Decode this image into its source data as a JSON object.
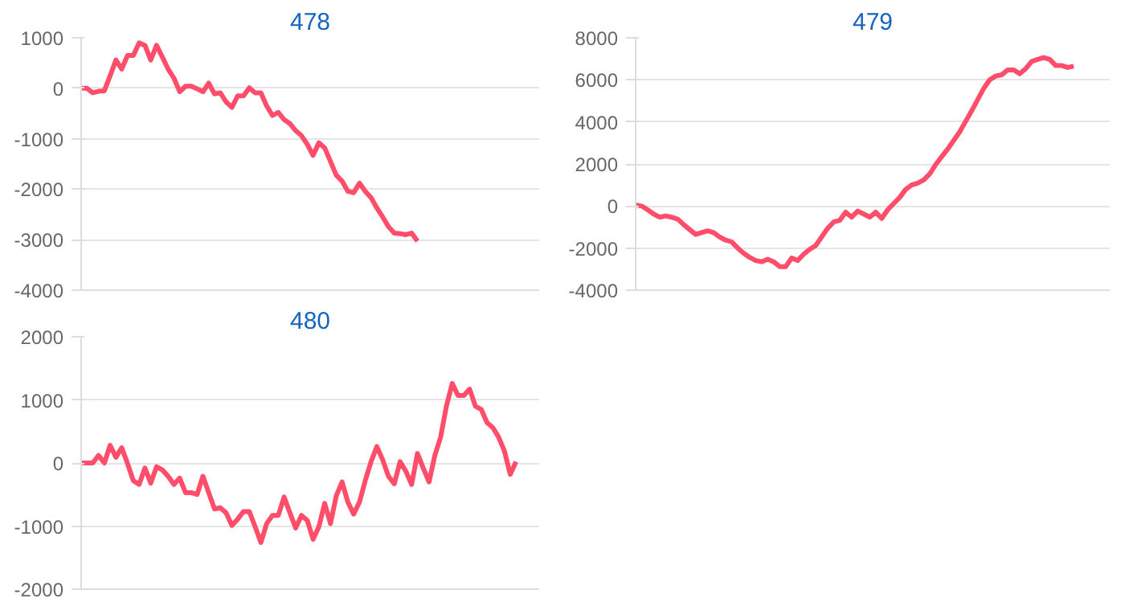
{
  "chart_data": [
    {
      "type": "line",
      "title": "478",
      "categories": [
        null,
        null,
        null,
        null,
        null,
        null,
        null,
        null,
        null,
        null,
        null,
        null,
        null,
        null,
        null,
        null,
        null,
        null,
        null,
        null,
        null,
        null,
        null,
        null,
        null,
        null,
        null,
        null,
        null,
        null,
        null,
        null,
        null,
        null,
        null,
        null,
        null,
        null,
        null,
        null,
        null,
        null,
        null,
        null,
        null,
        null,
        null,
        null,
        null,
        null,
        null,
        null,
        null,
        null,
        null,
        null,
        null,
        null,
        null,
        null,
        null,
        null,
        null,
        null,
        null,
        null,
        null,
        null,
        null,
        null,
        null,
        null,
        null,
        null,
        null,
        null,
        null,
        null,
        null,
        null
      ],
      "series": [
        {
          "color": "#ff4d6a",
          "values": [
            0,
            0,
            -90,
            -60,
            -50,
            250,
            560,
            380,
            650,
            650,
            900,
            850,
            560,
            850,
            620,
            380,
            200,
            -70,
            40,
            40,
            -10,
            -70,
            100,
            -110,
            -90,
            -270,
            -380,
            -150,
            -150,
            10,
            -90,
            -90,
            -350,
            -540,
            -480,
            -620,
            -700,
            -840,
            -940,
            -1110,
            -1330,
            -1080,
            -1180,
            -1450,
            -1720,
            -1840,
            -2040,
            -2070,
            -1880,
            -2040,
            -2170,
            -2370,
            -2550,
            -2740,
            -2870,
            -2880,
            -2900,
            -2870,
            -3030,
            null,
            null,
            null,
            null,
            null,
            null,
            null,
            null,
            null,
            null,
            null,
            null,
            null,
            null,
            null,
            null,
            null,
            null,
            null,
            null,
            null
          ]
        }
      ],
      "ylim": [
        -4000,
        1000
      ],
      "yticks": [
        -4000,
        -3000,
        -2000,
        -1000,
        0,
        1000
      ],
      "grid": "y",
      "tick_labels": "y",
      "marker": "none",
      "line_style": "solid"
    },
    {
      "type": "line",
      "title": "479",
      "categories": [
        null,
        null,
        null,
        null,
        null,
        null,
        null,
        null,
        null,
        null,
        null,
        null,
        null,
        null,
        null,
        null,
        null,
        null,
        null,
        null,
        null,
        null,
        null,
        null,
        null,
        null,
        null,
        null,
        null,
        null,
        null,
        null,
        null,
        null,
        null,
        null,
        null,
        null,
        null,
        null,
        null,
        null,
        null,
        null,
        null,
        null,
        null,
        null,
        null,
        null,
        null,
        null,
        null,
        null,
        null,
        null,
        null,
        null,
        null,
        null,
        null,
        null,
        null,
        null,
        null,
        null,
        null,
        null,
        null,
        null,
        null,
        null,
        null,
        null,
        null,
        null,
        null,
        null,
        null,
        null
      ],
      "series": [
        {
          "color": "#ff4d6a",
          "values": [
            50,
            0,
            -180,
            -380,
            -530,
            -470,
            -530,
            -620,
            -880,
            -1120,
            -1350,
            -1260,
            -1180,
            -1260,
            -1470,
            -1620,
            -1700,
            -2000,
            -2240,
            -2440,
            -2590,
            -2650,
            -2530,
            -2650,
            -2880,
            -2880,
            -2470,
            -2590,
            -2290,
            -2060,
            -1880,
            -1470,
            -1060,
            -760,
            -680,
            -290,
            -530,
            -240,
            -380,
            -530,
            -290,
            -590,
            -180,
            120,
            410,
            790,
            1000,
            1090,
            1240,
            1530,
            1970,
            2350,
            2710,
            3120,
            3530,
            4030,
            4530,
            5060,
            5590,
            6000,
            6180,
            6240,
            6470,
            6470,
            6290,
            6530,
            6880,
            6970,
            7060,
            6970,
            6680,
            6680,
            6590,
            6650,
            null,
            null,
            null,
            null,
            null,
            null
          ]
        }
      ],
      "ylim": [
        -4000,
        8000
      ],
      "yticks": [
        -4000,
        -2000,
        0,
        2000,
        4000,
        6000,
        8000
      ],
      "grid": "y",
      "tick_labels": "y",
      "marker": "none",
      "line_style": "solid"
    },
    {
      "type": "line",
      "title": "480",
      "categories": [
        null,
        null,
        null,
        null,
        null,
        null,
        null,
        null,
        null,
        null,
        null,
        null,
        null,
        null,
        null,
        null,
        null,
        null,
        null,
        null,
        null,
        null,
        null,
        null,
        null,
        null,
        null,
        null,
        null,
        null,
        null,
        null,
        null,
        null,
        null,
        null,
        null,
        null,
        null,
        null,
        null,
        null,
        null,
        null,
        null,
        null,
        null,
        null,
        null,
        null,
        null,
        null,
        null,
        null,
        null,
        null,
        null,
        null,
        null,
        null,
        null,
        null,
        null,
        null,
        null,
        null,
        null,
        null,
        null,
        null,
        null,
        null,
        null,
        null,
        null,
        null,
        null,
        null,
        null,
        null
      ],
      "series": [
        {
          "color": "#ff4d6a",
          "values": [
            0,
            0,
            0,
            120,
            0,
            280,
            90,
            240,
            -10,
            -280,
            -340,
            -80,
            -320,
            -60,
            -110,
            -210,
            -340,
            -240,
            -470,
            -470,
            -500,
            -210,
            -470,
            -730,
            -710,
            -790,
            -990,
            -890,
            -770,
            -770,
            -1010,
            -1260,
            -960,
            -830,
            -830,
            -540,
            -790,
            -1030,
            -830,
            -910,
            -1210,
            -1010,
            -640,
            -960,
            -520,
            -300,
            -620,
            -810,
            -620,
            -280,
            20,
            260,
            50,
            -210,
            -330,
            20,
            -130,
            -340,
            150,
            -80,
            -300,
            120,
            410,
            900,
            1260,
            1070,
            1070,
            1170,
            900,
            850,
            640,
            560,
            410,
            190,
            -180,
            20,
            null,
            null,
            null,
            null
          ]
        }
      ],
      "ylim": [
        -2000,
        2000
      ],
      "yticks": [
        -2000,
        -1000,
        0,
        1000,
        2000
      ],
      "grid": "y",
      "tick_labels": "y",
      "marker": "none",
      "line_style": "solid"
    }
  ]
}
